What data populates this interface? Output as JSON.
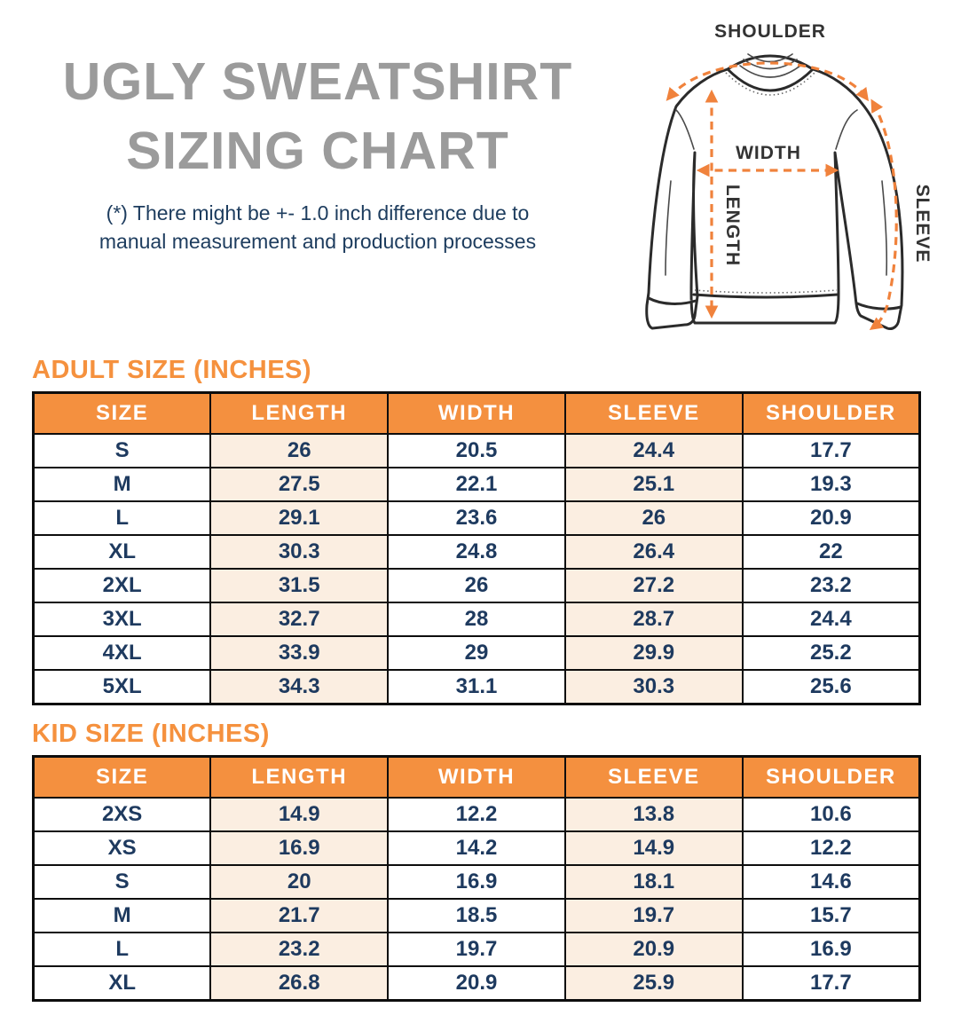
{
  "title": {
    "line1": "UGLY SWEATSHIRT",
    "line2": "SIZING CHART"
  },
  "disclaimer": {
    "line1": "(*) There might be +- 1.0 inch difference due to",
    "line2": "manual measurement and production processes"
  },
  "diagram": {
    "shoulder_label": "SHOULDER",
    "width_label": "WIDTH",
    "length_label": "LENGTH",
    "sleeve_label": "SLEEVE"
  },
  "colors": {
    "accent_orange": "#F4903F",
    "arrow_orange": "#F0823C",
    "peach_cell": "#FBEEE1",
    "navy_text": "#1E3A5F",
    "title_gray": "#9B9B9B",
    "border_black": "#0D0D0D"
  },
  "adult_table": {
    "heading": "ADULT SIZE (INCHES)",
    "columns": [
      "SIZE",
      "LENGTH",
      "WIDTH",
      "SLEEVE",
      "SHOULDER"
    ],
    "rows": [
      [
        "S",
        "26",
        "20.5",
        "24.4",
        "17.7"
      ],
      [
        "M",
        "27.5",
        "22.1",
        "25.1",
        "19.3"
      ],
      [
        "L",
        "29.1",
        "23.6",
        "26",
        "20.9"
      ],
      [
        "XL",
        "30.3",
        "24.8",
        "26.4",
        "22"
      ],
      [
        "2XL",
        "31.5",
        "26",
        "27.2",
        "23.2"
      ],
      [
        "3XL",
        "32.7",
        "28",
        "28.7",
        "24.4"
      ],
      [
        "4XL",
        "33.9",
        "29",
        "29.9",
        "25.2"
      ],
      [
        "5XL",
        "34.3",
        "31.1",
        "30.3",
        "25.6"
      ]
    ]
  },
  "kid_table": {
    "heading": "KID SIZE (INCHES)",
    "columns": [
      "SIZE",
      "LENGTH",
      "WIDTH",
      "SLEEVE",
      "SHOULDER"
    ],
    "rows": [
      [
        "2XS",
        "14.9",
        "12.2",
        "13.8",
        "10.6"
      ],
      [
        "XS",
        "16.9",
        "14.2",
        "14.9",
        "12.2"
      ],
      [
        "S",
        "20",
        "16.9",
        "18.1",
        "14.6"
      ],
      [
        "M",
        "21.7",
        "18.5",
        "19.7",
        "15.7"
      ],
      [
        "L",
        "23.2",
        "19.7",
        "20.9",
        "16.9"
      ],
      [
        "XL",
        "26.8",
        "20.9",
        "25.9",
        "17.7"
      ]
    ]
  },
  "chart_data": [
    {
      "type": "table",
      "title": "ADULT SIZE (INCHES)",
      "columns": [
        "SIZE",
        "LENGTH",
        "WIDTH",
        "SLEEVE",
        "SHOULDER"
      ],
      "rows": [
        [
          "S",
          26,
          20.5,
          24.4,
          17.7
        ],
        [
          "M",
          27.5,
          22.1,
          25.1,
          19.3
        ],
        [
          "L",
          29.1,
          23.6,
          26,
          20.9
        ],
        [
          "XL",
          30.3,
          24.8,
          26.4,
          22
        ],
        [
          "2XL",
          31.5,
          26,
          27.2,
          23.2
        ],
        [
          "3XL",
          32.7,
          28,
          28.7,
          24.4
        ],
        [
          "4XL",
          33.9,
          29,
          29.9,
          25.2
        ],
        [
          "5XL",
          34.3,
          31.1,
          30.3,
          25.6
        ]
      ]
    },
    {
      "type": "table",
      "title": "KID SIZE (INCHES)",
      "columns": [
        "SIZE",
        "LENGTH",
        "WIDTH",
        "SLEEVE",
        "SHOULDER"
      ],
      "rows": [
        [
          "2XS",
          14.9,
          12.2,
          13.8,
          10.6
        ],
        [
          "XS",
          16.9,
          14.2,
          14.9,
          12.2
        ],
        [
          "S",
          20,
          16.9,
          18.1,
          14.6
        ],
        [
          "M",
          21.7,
          18.5,
          19.7,
          15.7
        ],
        [
          "L",
          23.2,
          19.7,
          20.9,
          16.9
        ],
        [
          "XL",
          26.8,
          20.9,
          25.9,
          17.7
        ]
      ]
    }
  ]
}
